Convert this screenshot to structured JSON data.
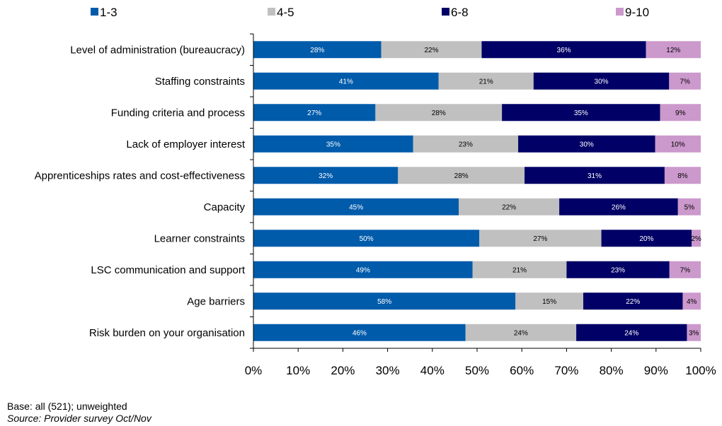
{
  "chart_data": {
    "type": "bar",
    "orientation": "horizontal",
    "stacked": true,
    "categories": [
      "Level of administration (bureaucracy)",
      "Staffing constraints",
      "Funding criteria and process",
      "Lack of employer interest",
      "Apprenticeships rates and cost-effectiveness",
      "Capacity",
      "Learner constraints",
      "LSC communication and support",
      "Age barriers",
      "Risk burden on your organisation"
    ],
    "series": [
      {
        "name": "1-3",
        "color": "#005bab",
        "values": [
          28,
          41,
          27,
          35,
          32,
          45,
          50,
          49,
          58,
          46
        ],
        "labels": [
          "28%",
          "41%",
          "27%",
          "35%",
          "32%",
          "45%",
          "50%",
          "49%",
          "58%",
          "46%"
        ]
      },
      {
        "name": "4-5",
        "color": "#c0c0c0",
        "values": [
          22,
          21,
          28,
          23,
          28,
          22,
          27,
          21,
          15,
          24
        ],
        "labels": [
          "22%",
          "21%",
          "28%",
          "23%",
          "28%",
          "22%",
          "27%",
          "21%",
          "15%",
          "24%"
        ]
      },
      {
        "name": "6-8",
        "color": "#000066",
        "values": [
          36,
          30,
          35,
          30,
          31,
          26,
          20,
          23,
          22,
          24
        ],
        "labels": [
          "36%",
          "30%",
          "35%",
          "30%",
          "31%",
          "26%",
          "20%",
          "23%",
          "22%",
          "24%"
        ]
      },
      {
        "name": "9-10",
        "color": "#cc99cc",
        "values": [
          12,
          7,
          9,
          10,
          8,
          5,
          2,
          7,
          4,
          3
        ],
        "labels": [
          "12%",
          "7%",
          "9%",
          "10%",
          "8%",
          "5%",
          "2%",
          "7%",
          "4%",
          "3%"
        ]
      }
    ],
    "xlim": [
      0,
      100
    ],
    "x_ticks": [
      "0%",
      "10%",
      "20%",
      "30%",
      "40%",
      "50%",
      "60%",
      "70%",
      "80%",
      "90%",
      "100%"
    ],
    "legend_position": "top",
    "grid": false
  },
  "footnotes": {
    "base": "Base: all (521); unweighted",
    "source": "Source: Provider survey Oct/Nov"
  }
}
